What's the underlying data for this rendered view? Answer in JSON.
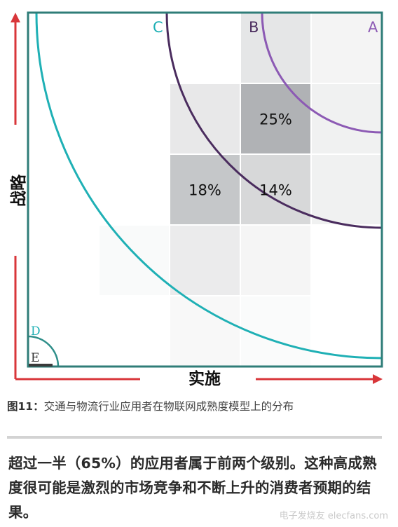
{
  "diagram": {
    "y_axis_label": "战略",
    "x_axis_label": "实施",
    "arc_labels": [
      "A",
      "B",
      "C",
      "D",
      "E"
    ],
    "cells": [
      {
        "row": 0,
        "col": 3,
        "shade": 0.18,
        "label": ""
      },
      {
        "row": 0,
        "col": 4,
        "shade": 0.08,
        "label": ""
      },
      {
        "row": 1,
        "col": 2,
        "shade": 0.16,
        "label": ""
      },
      {
        "row": 1,
        "col": 3,
        "shade": 0.55,
        "label": "25%"
      },
      {
        "row": 1,
        "col": 4,
        "shade": 0.1,
        "label": ""
      },
      {
        "row": 2,
        "col": 2,
        "shade": 0.4,
        "label": "18%"
      },
      {
        "row": 2,
        "col": 3,
        "shade": 0.28,
        "label": "14%"
      },
      {
        "row": 2,
        "col": 4,
        "shade": 0.1,
        "label": ""
      },
      {
        "row": 3,
        "col": 1,
        "shade": 0.04,
        "label": ""
      },
      {
        "row": 3,
        "col": 2,
        "shade": 0.14,
        "label": ""
      },
      {
        "row": 3,
        "col": 3,
        "shade": 0.07,
        "label": ""
      },
      {
        "row": 4,
        "col": 2,
        "shade": 0.05,
        "label": ""
      },
      {
        "row": 4,
        "col": 3,
        "shade": 0.03,
        "label": ""
      }
    ],
    "colors": {
      "teal": "#1fb0b5",
      "frame": "#2f7d78",
      "purple_light": "#8c5ab4",
      "purple_dark": "#4a2c5e",
      "axis_red": "#d8363a",
      "cell_base": "#6f7378"
    }
  },
  "caption": {
    "figure_no": "图11：",
    "text": "交通与物流行业应用者在物联网成熟度模型上的分布"
  },
  "paragraph": "超过一半（65%）的应用者属于前两个级别。这种高成熟度很可能是激烈的市场竞争和不断上升的消费者预期的结果。",
  "watermark": "电子发烧友 elecfans.com"
}
